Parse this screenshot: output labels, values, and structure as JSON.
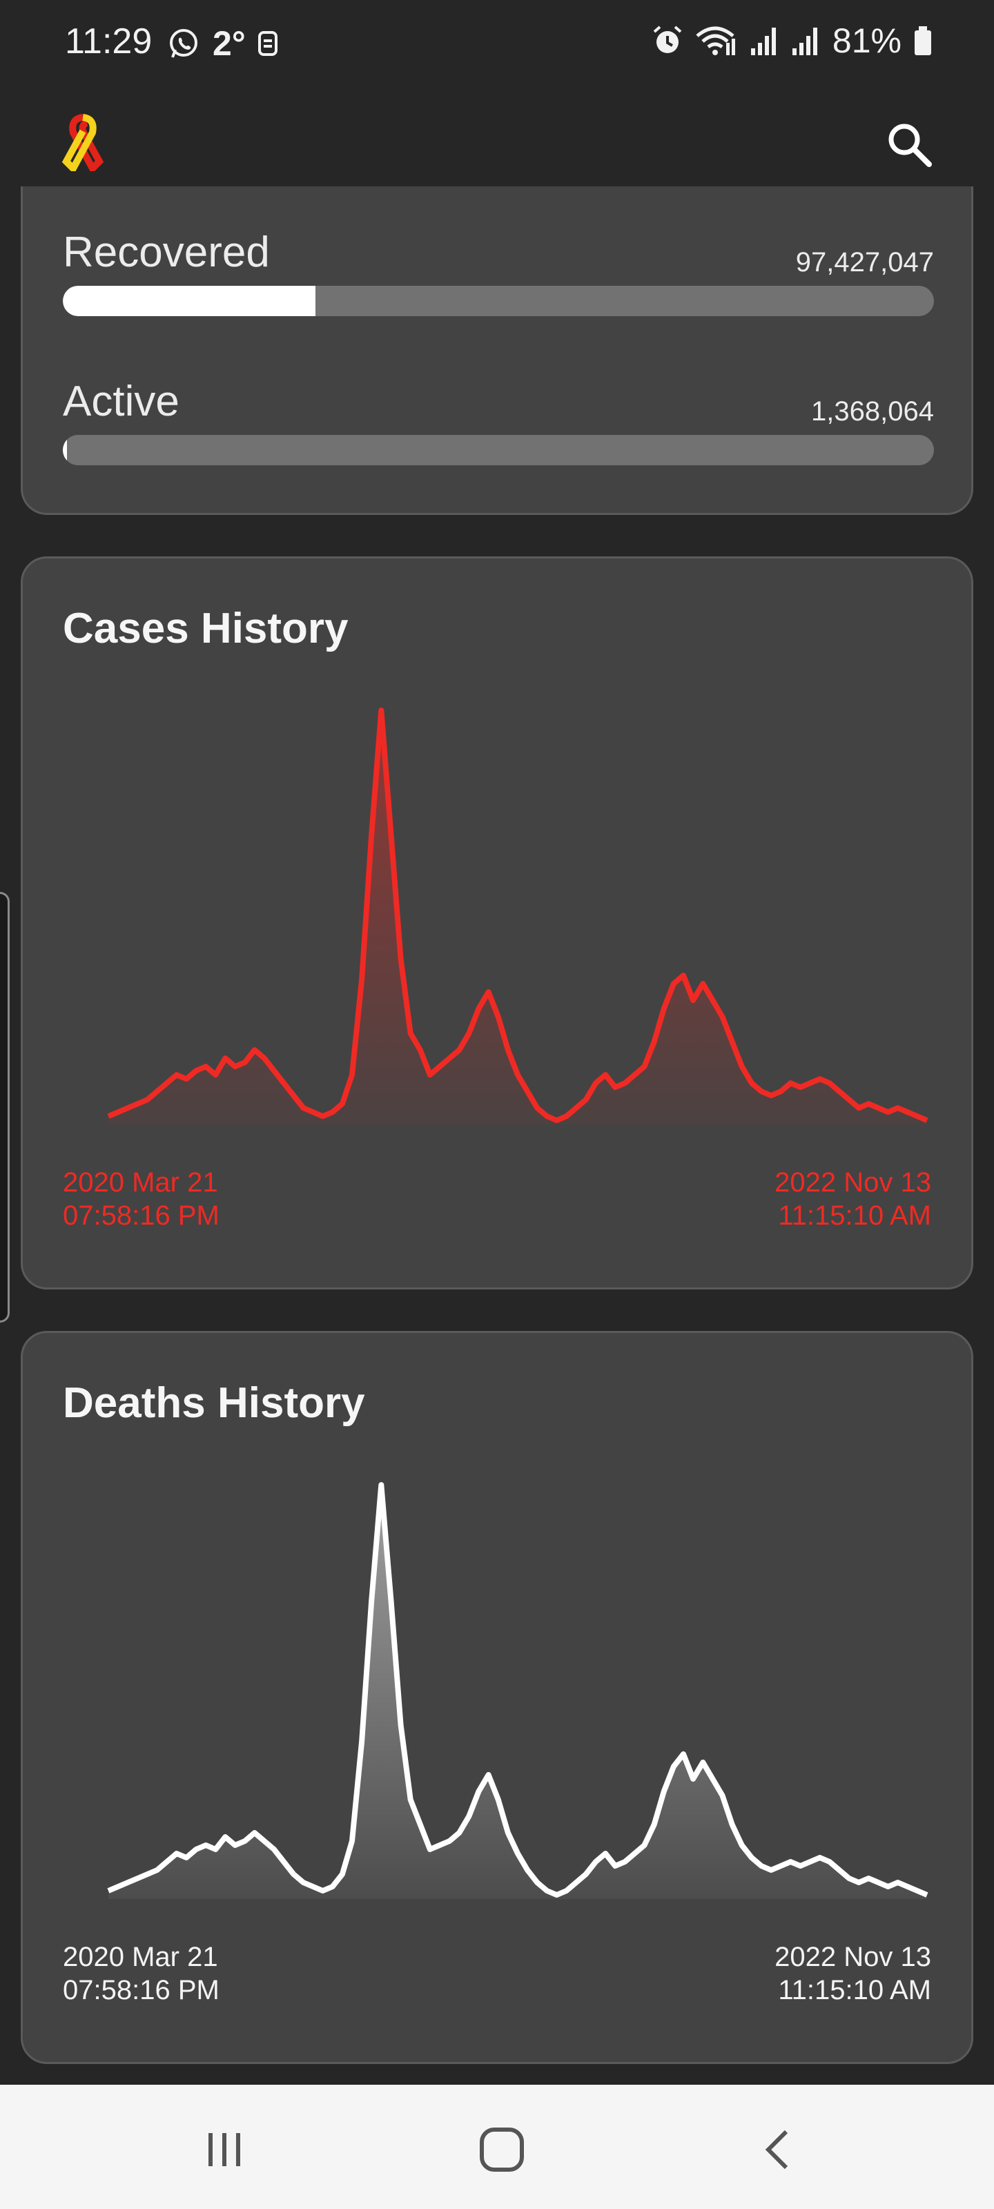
{
  "status_bar": {
    "time": "11:29",
    "temperature": "2°",
    "battery": "81%",
    "icons": [
      "whatsapp-icon",
      "weather-icon",
      "alarm-icon",
      "wifi-icon",
      "signal-icon",
      "signal-icon",
      "battery-icon"
    ]
  },
  "app_bar": {
    "logo_icon": "ribbon-icon",
    "search_icon": "search-icon"
  },
  "stats": {
    "recovered": {
      "label": "Recovered",
      "value": "97,427,047",
      "fraction": 0.29
    },
    "active": {
      "label": "Active",
      "value": "1,368,064",
      "fraction": 0.005
    }
  },
  "cases_history": {
    "title": "Cases History",
    "start_date": "2020 Mar 21",
    "start_time": "07:58:16 PM",
    "end_date": "2022 Nov 13",
    "end_time": "11:15:10 AM",
    "color": "#ef2a24"
  },
  "deaths_history": {
    "title": "Deaths History",
    "start_date": "2020 Mar 21",
    "start_time": "07:58:16 PM",
    "end_date": "2022 Nov 13",
    "end_time": "11:15:10 AM",
    "color": "#ffffff"
  },
  "chart_data": [
    {
      "type": "area",
      "series": [
        {
          "values": [
            2,
            3,
            4,
            5,
            6,
            8,
            10,
            12,
            11,
            13,
            14,
            12,
            16,
            14,
            15,
            18,
            16,
            13,
            10,
            7,
            4,
            3,
            2,
            3,
            5,
            12,
            35,
            70,
            100,
            70,
            40,
            22,
            18,
            12,
            14,
            16,
            18,
            22,
            28,
            32,
            26,
            18,
            12,
            8,
            4,
            2,
            1,
            2,
            4,
            6,
            10,
            12,
            9,
            10,
            12,
            14,
            20,
            28,
            34,
            36,
            30,
            34,
            30,
            26,
            20,
            14,
            10,
            8,
            7,
            8,
            10,
            9,
            10,
            11,
            10,
            8,
            6,
            4,
            5,
            4,
            3,
            4,
            3,
            2,
            1
          ]
        }
      ]
    },
    {
      "type": "area",
      "series": [
        {
          "values": [
            2,
            3,
            4,
            5,
            6,
            7,
            9,
            11,
            10,
            12,
            13,
            12,
            15,
            13,
            14,
            16,
            14,
            12,
            9,
            6,
            4,
            3,
            2,
            3,
            6,
            14,
            38,
            72,
            100,
            72,
            42,
            24,
            18,
            12,
            13,
            14,
            16,
            20,
            26,
            30,
            24,
            16,
            11,
            7,
            4,
            2,
            1,
            2,
            4,
            6,
            9,
            11,
            8,
            9,
            11,
            13,
            18,
            26,
            32,
            35,
            29,
            33,
            29,
            25,
            18,
            13,
            10,
            8,
            7,
            8,
            9,
            8,
            9,
            10,
            9,
            7,
            5,
            4,
            5,
            4,
            3,
            4,
            3,
            2,
            1
          ]
        }
      ]
    }
  ],
  "nav": {
    "recents_icon": "recents-icon",
    "home_icon": "home-icon",
    "back_icon": "back-icon"
  }
}
